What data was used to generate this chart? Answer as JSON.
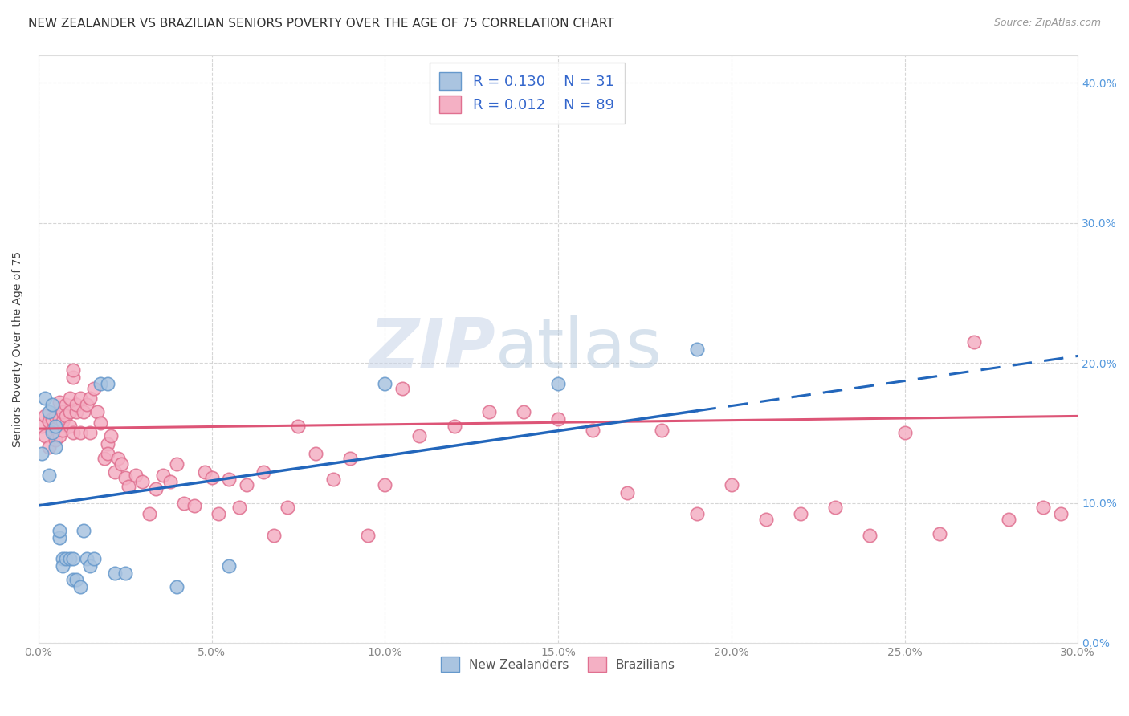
{
  "title": "NEW ZEALANDER VS BRAZILIAN SENIORS POVERTY OVER THE AGE OF 75 CORRELATION CHART",
  "source": "Source: ZipAtlas.com",
  "ylabel": "Seniors Poverty Over the Age of 75",
  "xlim": [
    0.0,
    0.3
  ],
  "ylim": [
    0.0,
    0.42
  ],
  "xticks": [
    0.0,
    0.05,
    0.1,
    0.15,
    0.2,
    0.25,
    0.3
  ],
  "yticks": [
    0.0,
    0.1,
    0.2,
    0.3,
    0.4
  ],
  "background_color": "#ffffff",
  "grid_color": "#cccccc",
  "nz_color": "#aac4e0",
  "br_color": "#f4b0c4",
  "nz_edge_color": "#6699cc",
  "br_edge_color": "#e07090",
  "trend_nz_color": "#2266bb",
  "trend_br_color": "#dd5577",
  "R_nz": 0.13,
  "N_nz": 31,
  "R_br": 0.012,
  "N_br": 89,
  "legend_label_nz": "New Zealanders",
  "legend_label_br": "Brazilians",
  "title_fontsize": 11,
  "tick_fontsize": 10,
  "right_tick_color": "#5599dd",
  "watermark_zip": "ZIP",
  "watermark_atlas": "atlas",
  "nz_trend_x0": 0.0,
  "nz_trend_y0": 0.098,
  "nz_trend_x1": 0.3,
  "nz_trend_y1": 0.205,
  "br_trend_x0": 0.0,
  "br_trend_y0": 0.153,
  "br_trend_x1": 0.3,
  "br_trend_y1": 0.162,
  "nz_x": [
    0.001,
    0.002,
    0.003,
    0.003,
    0.004,
    0.004,
    0.005,
    0.005,
    0.006,
    0.006,
    0.007,
    0.007,
    0.008,
    0.009,
    0.01,
    0.01,
    0.011,
    0.012,
    0.013,
    0.014,
    0.015,
    0.016,
    0.018,
    0.02,
    0.022,
    0.025,
    0.04,
    0.055,
    0.1,
    0.15,
    0.19
  ],
  "nz_y": [
    0.135,
    0.175,
    0.12,
    0.165,
    0.15,
    0.17,
    0.14,
    0.155,
    0.075,
    0.08,
    0.06,
    0.055,
    0.06,
    0.06,
    0.06,
    0.045,
    0.045,
    0.04,
    0.08,
    0.06,
    0.055,
    0.06,
    0.185,
    0.185,
    0.05,
    0.05,
    0.04,
    0.055,
    0.185,
    0.185,
    0.21
  ],
  "br_x": [
    0.001,
    0.002,
    0.002,
    0.003,
    0.003,
    0.004,
    0.004,
    0.005,
    0.005,
    0.005,
    0.006,
    0.006,
    0.006,
    0.007,
    0.007,
    0.007,
    0.008,
    0.008,
    0.009,
    0.009,
    0.009,
    0.01,
    0.01,
    0.01,
    0.011,
    0.011,
    0.012,
    0.012,
    0.013,
    0.014,
    0.015,
    0.015,
    0.016,
    0.017,
    0.018,
    0.019,
    0.02,
    0.02,
    0.021,
    0.022,
    0.023,
    0.024,
    0.025,
    0.026,
    0.028,
    0.03,
    0.032,
    0.034,
    0.036,
    0.038,
    0.04,
    0.042,
    0.045,
    0.048,
    0.05,
    0.052,
    0.055,
    0.058,
    0.06,
    0.065,
    0.068,
    0.072,
    0.075,
    0.08,
    0.085,
    0.09,
    0.095,
    0.1,
    0.105,
    0.11,
    0.12,
    0.13,
    0.14,
    0.15,
    0.16,
    0.17,
    0.18,
    0.19,
    0.2,
    0.21,
    0.22,
    0.23,
    0.24,
    0.25,
    0.26,
    0.27,
    0.28,
    0.29,
    0.295
  ],
  "br_y": [
    0.155,
    0.148,
    0.162,
    0.14,
    0.158,
    0.152,
    0.16,
    0.153,
    0.162,
    0.145,
    0.148,
    0.16,
    0.172,
    0.152,
    0.158,
    0.165,
    0.17,
    0.162,
    0.165,
    0.155,
    0.175,
    0.19,
    0.195,
    0.15,
    0.165,
    0.17,
    0.175,
    0.15,
    0.165,
    0.17,
    0.175,
    0.15,
    0.182,
    0.165,
    0.157,
    0.132,
    0.142,
    0.135,
    0.148,
    0.122,
    0.132,
    0.128,
    0.118,
    0.112,
    0.12,
    0.115,
    0.092,
    0.11,
    0.12,
    0.115,
    0.128,
    0.1,
    0.098,
    0.122,
    0.118,
    0.092,
    0.117,
    0.097,
    0.113,
    0.122,
    0.077,
    0.097,
    0.155,
    0.135,
    0.117,
    0.132,
    0.077,
    0.113,
    0.182,
    0.148,
    0.155,
    0.165,
    0.165,
    0.16,
    0.152,
    0.107,
    0.152,
    0.092,
    0.113,
    0.088,
    0.092,
    0.097,
    0.077,
    0.15,
    0.078,
    0.215,
    0.088,
    0.097,
    0.092
  ]
}
